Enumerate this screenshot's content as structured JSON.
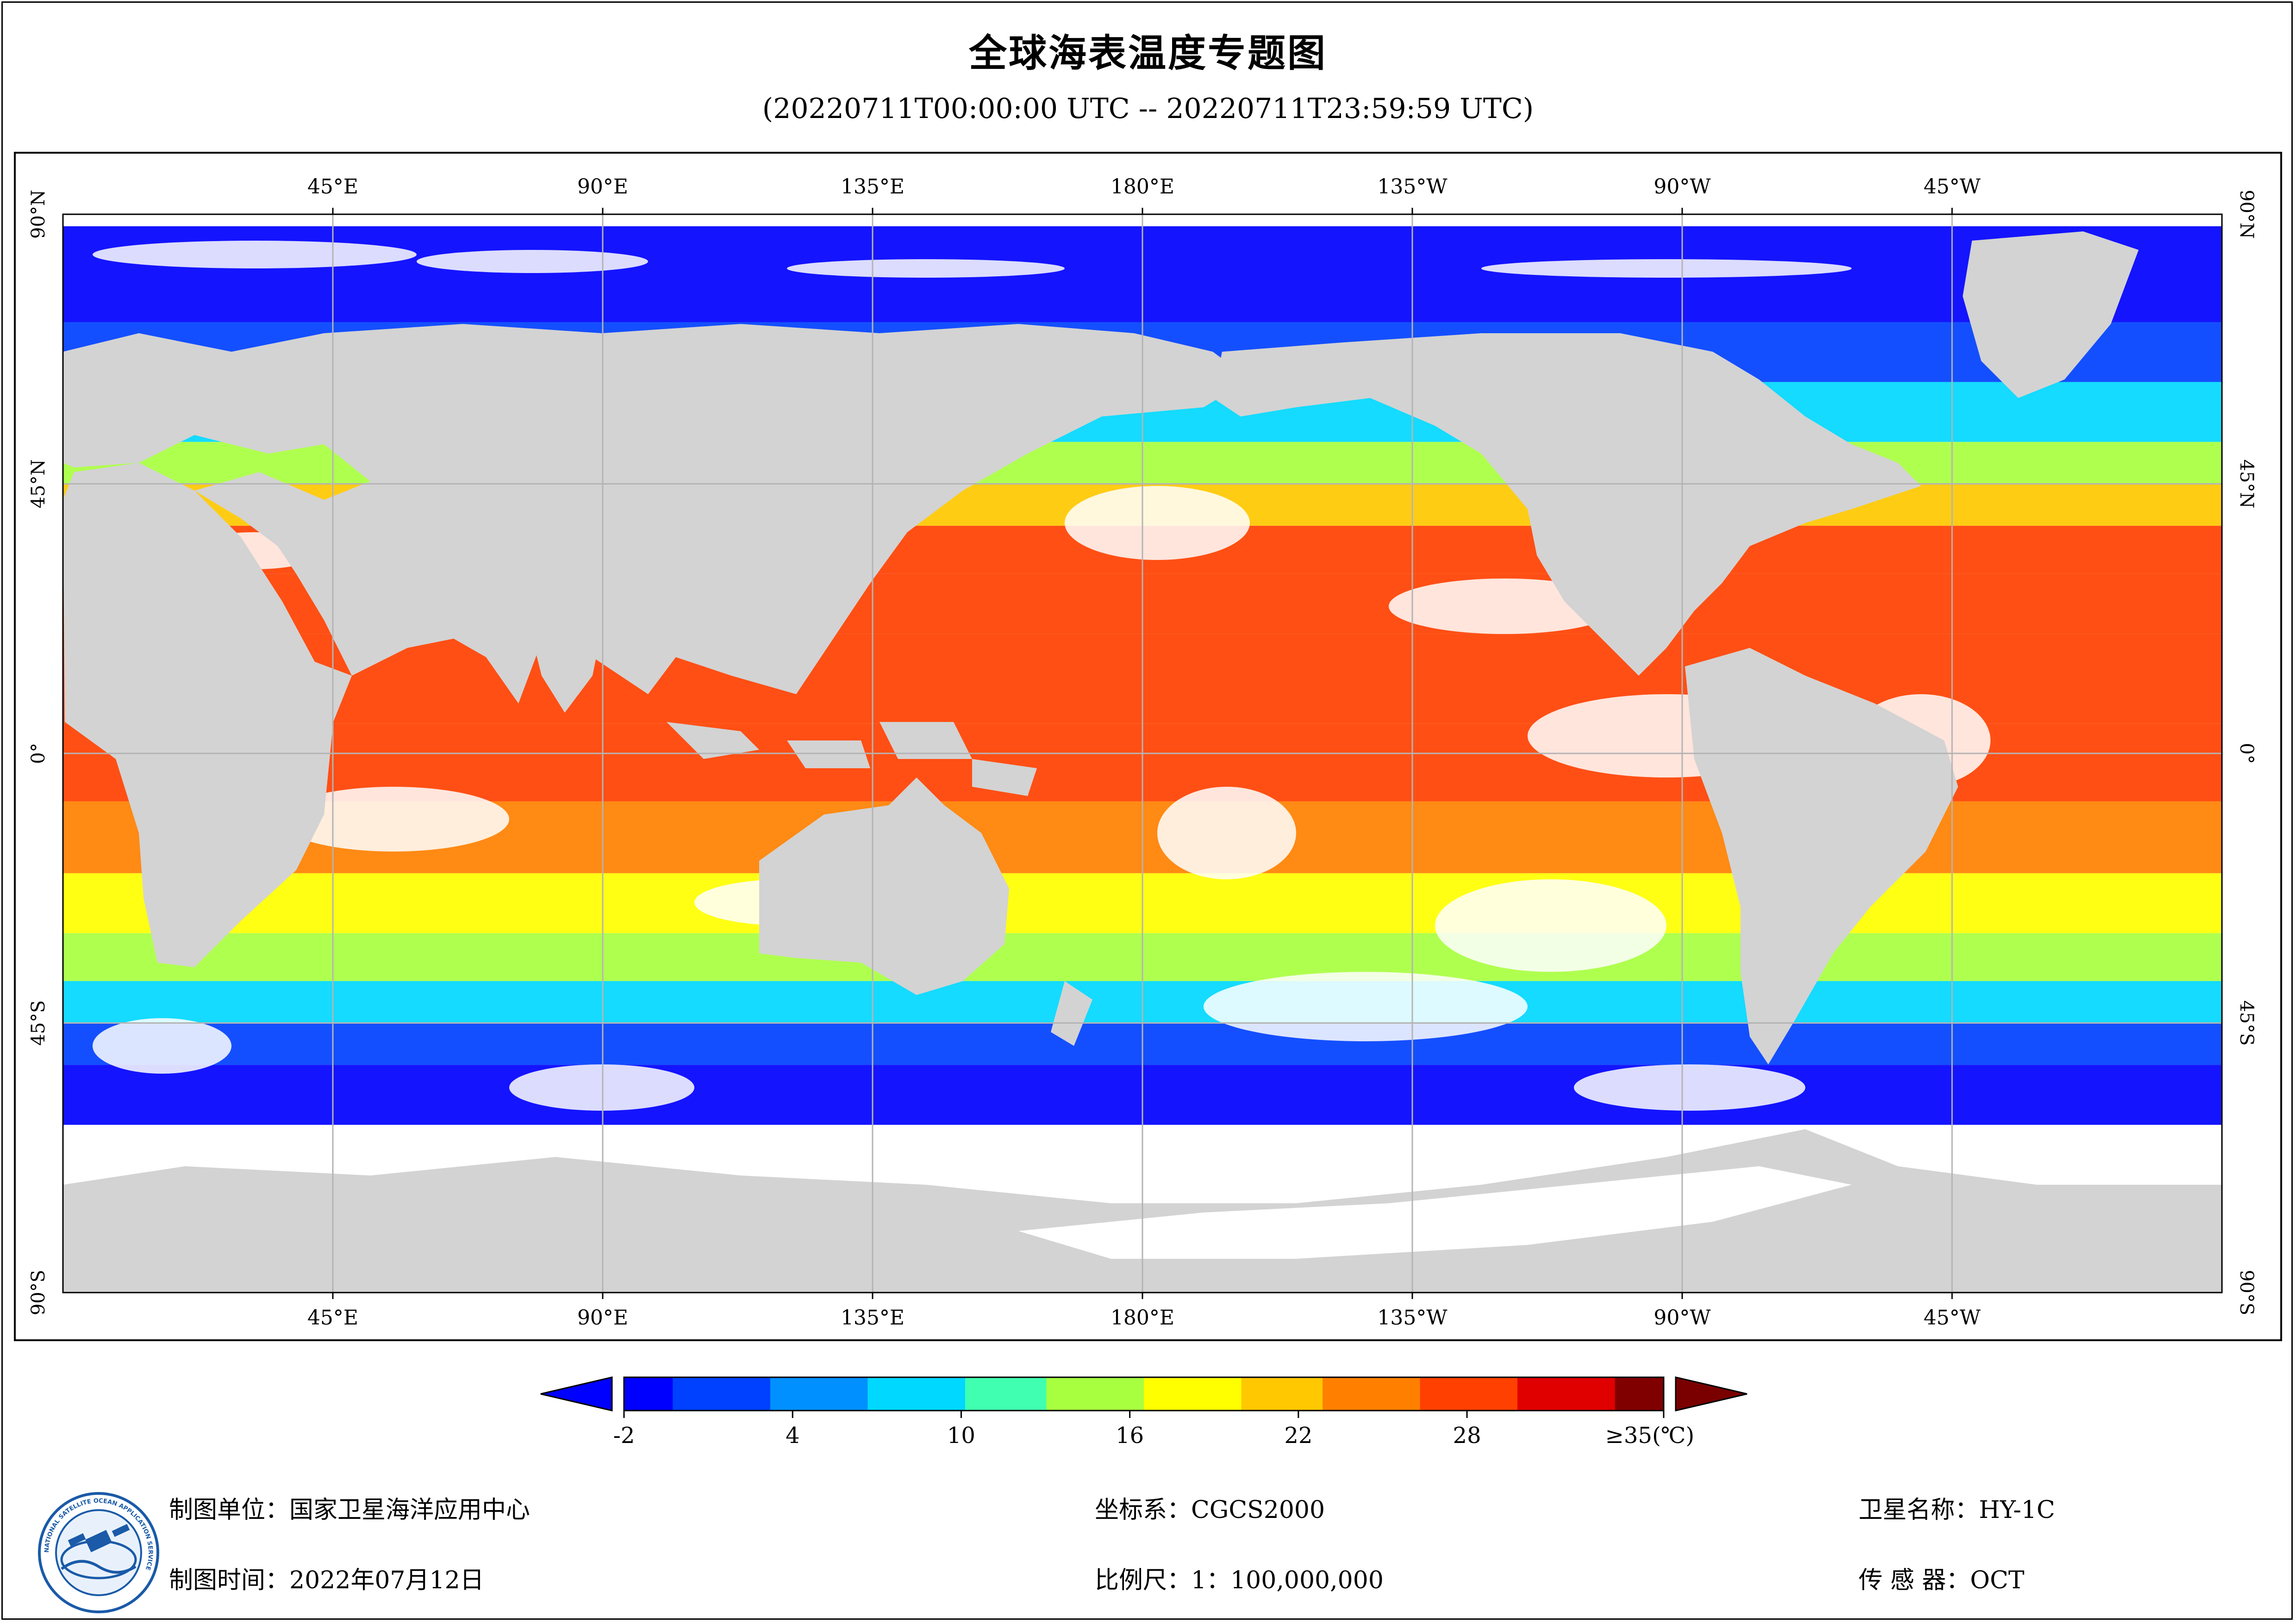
{
  "header": {
    "title": "全球海表温度专题图",
    "subtitle": "(20220711T00:00:00 UTC -- 20220711T23:59:59 UTC)"
  },
  "map": {
    "projection": "equirectangular",
    "lon_range_note": "Pacific-centered, 0°E to 360°E",
    "lat_labels": [
      "90°N",
      "45°N",
      "0°",
      "45°S",
      "90°S"
    ],
    "lon_labels": [
      "45°E",
      "90°E",
      "135°E",
      "180°E",
      "135°W",
      "90°W",
      "45°W"
    ],
    "colors": {
      "land": "#d3d3d3",
      "no_data": "#ffffff",
      "graticule": "#b4b4b4"
    }
  },
  "colorbar": {
    "ticks": [
      "-2",
      "4",
      "10",
      "16",
      "22",
      "28",
      "≥35(℃)"
    ],
    "colors": [
      "#0000ff",
      "#0040ff",
      "#0090ff",
      "#00d8ff",
      "#40ffb0",
      "#a8ff40",
      "#ffff00",
      "#ffc800",
      "#ff8000",
      "#ff4000",
      "#e00000",
      "#800000"
    ],
    "under_color": "#0000ff",
    "over_color": "#7a0000"
  },
  "footer": {
    "producer": "制图单位：国家卫星海洋应用中心",
    "date": "制图时间：2022年07月12日",
    "crs": "坐标系：CGCS2000",
    "scale": "比例尺：1：100,000,000",
    "satellite": "卫星名称：HY-1C",
    "sensor": "传 感 器：OCT"
  },
  "logo": {
    "name": "nsoas-logo",
    "text": "NATIONAL SATELLITE OCEAN APPLICATION SERVICE"
  }
}
